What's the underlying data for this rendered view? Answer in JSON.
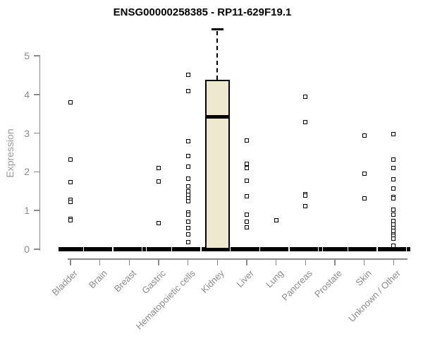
{
  "title": "ENSG00000258385 - RP11-629F19.1",
  "chart_data": {
    "type": "boxplot",
    "title": "ENSG00000258385 - RP11-629F19.1",
    "xlabel": "",
    "ylabel": "Expression",
    "yticks": [
      0,
      1,
      2,
      3,
      4,
      5
    ],
    "ylim": [
      0,
      5.8
    ],
    "grid": false,
    "legend": false,
    "categories": [
      "Bladder",
      "Brain",
      "Breast",
      "Gastric",
      "Hematopoietic cells",
      "Kidney",
      "Liver",
      "Lung",
      "Pancreas",
      "Prostate",
      "Skin",
      "Unknown / Other"
    ],
    "series": [
      {
        "name": "Bladder",
        "zero_cluster": true,
        "points": [
          3.8,
          2.31,
          1.74,
          1.27,
          1.23,
          0.78,
          0.74
        ]
      },
      {
        "name": "Brain",
        "zero_cluster": true,
        "points": []
      },
      {
        "name": "Breast",
        "zero_cluster": true,
        "points": []
      },
      {
        "name": "Gastric",
        "zero_cluster": true,
        "points": [
          2.1,
          1.76,
          0.68
        ]
      },
      {
        "name": "Hematopoietic cells",
        "zero_cluster": true,
        "points": [
          4.51,
          4.09,
          2.8,
          2.41,
          2.14,
          1.82,
          1.62,
          1.49,
          1.4,
          1.32,
          1.25,
          0.94,
          0.9,
          0.72,
          0.55,
          0.38,
          0.18
        ]
      },
      {
        "name": "Kidney",
        "zero_cluster": true,
        "box": {
          "whisker_low": 0,
          "q1": 0,
          "median": 3.43,
          "q3": 4.38,
          "whisker_high": 5.68
        },
        "points": []
      },
      {
        "name": "Liver",
        "zero_cluster": true,
        "points": [
          2.81,
          2.21,
          2.1,
          1.77,
          1.37,
          0.9,
          0.72,
          0.56
        ]
      },
      {
        "name": "Lung",
        "zero_cluster": true,
        "points": [
          0.74
        ]
      },
      {
        "name": "Pancreas",
        "zero_cluster": true,
        "points": [
          3.95,
          3.28,
          1.42,
          1.38,
          1.12
        ]
      },
      {
        "name": "Prostate",
        "zero_cluster": true,
        "points": []
      },
      {
        "name": "Skin",
        "zero_cluster": true,
        "points": [
          2.93,
          1.95,
          1.32
        ]
      },
      {
        "name": "Unknown / Other",
        "zero_cluster": true,
        "points": [
          2.97,
          2.31,
          2.1,
          1.81,
          1.57,
          1.35,
          1.31,
          1.03,
          0.89,
          0.73,
          0.63,
          0.55,
          0.47,
          0.39,
          0.35,
          0.27,
          0.1
        ]
      }
    ],
    "colors": {
      "box_fill": "#ede8ce",
      "box_border": "#000000",
      "median": "#000000",
      "point": "#000000",
      "axis": "#8a8a8a",
      "axis_label": "#9a9a9a",
      "title": "#000000"
    }
  }
}
